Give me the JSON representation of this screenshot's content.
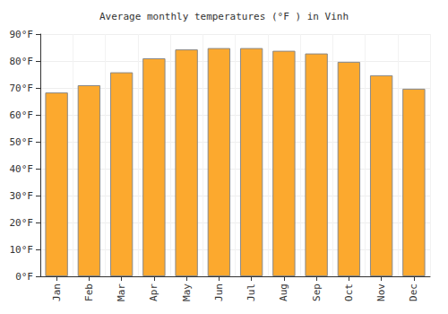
{
  "chart_data": {
    "type": "bar",
    "title": "Average monthly temperatures (°F ) in Vinh",
    "categories": [
      "Jan",
      "Feb",
      "Mar",
      "Apr",
      "May",
      "Jun",
      "Jul",
      "Aug",
      "Sep",
      "Oct",
      "Nov",
      "Dec"
    ],
    "values": [
      68.3,
      71,
      75.8,
      81,
      84.3,
      84.8,
      84.8,
      83.8,
      82.8,
      79.7,
      74.7,
      69.7
    ],
    "color": "#fca92e",
    "ylim": [
      0,
      90
    ],
    "yticks": [
      {
        "value": 0,
        "label": "0°F"
      },
      {
        "value": 10,
        "label": "10°F"
      },
      {
        "value": 20,
        "label": "20°F"
      },
      {
        "value": 30,
        "label": "30°F"
      },
      {
        "value": 40,
        "label": "40°F"
      },
      {
        "value": 50,
        "label": "50°F"
      },
      {
        "value": 60,
        "label": "60°F"
      },
      {
        "value": 70,
        "label": "70°F"
      },
      {
        "value": 80,
        "label": "80°F"
      },
      {
        "value": 90,
        "label": "90°F"
      }
    ],
    "grid": true
  }
}
